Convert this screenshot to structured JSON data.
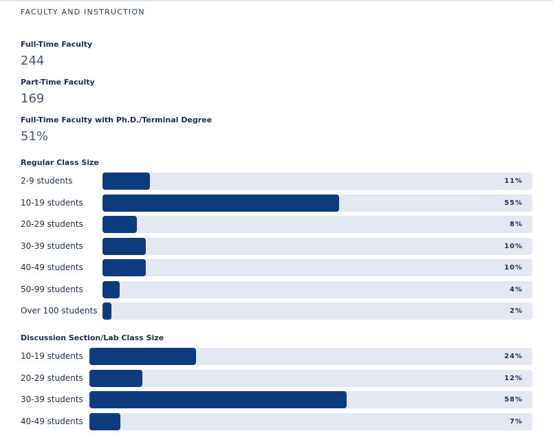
{
  "section": {
    "title": "FACULTY AND INSTRUCTION"
  },
  "stats": [
    {
      "label": "Full-Time Faculty",
      "value": "244"
    },
    {
      "label": "Part-Time Faculty",
      "value": "169"
    },
    {
      "label": "Full-Time Faculty with Ph.D./Terminal Degree",
      "value": "51%"
    }
  ],
  "regular_class_size": {
    "title": "Regular Class Size",
    "rows": [
      {
        "label": "2-9 students",
        "percent": 11,
        "percent_text": "11%"
      },
      {
        "label": "10-19 students",
        "percent": 55,
        "percent_text": "55%"
      },
      {
        "label": "20-29 students",
        "percent": 8,
        "percent_text": "8%"
      },
      {
        "label": "30-39 students",
        "percent": 10,
        "percent_text": "10%"
      },
      {
        "label": "40-49 students",
        "percent": 10,
        "percent_text": "10%"
      },
      {
        "label": "50-99 students",
        "percent": 4,
        "percent_text": "4%"
      },
      {
        "label": "Over 100 students",
        "percent": 2,
        "percent_text": "2%"
      }
    ]
  },
  "lab_class_size": {
    "title": "Discussion Section/Lab Class Size",
    "rows": [
      {
        "label": "10-19 students",
        "percent": 24,
        "percent_text": "24%"
      },
      {
        "label": "20-29 students",
        "percent": 12,
        "percent_text": "12%"
      },
      {
        "label": "30-39 students",
        "percent": 58,
        "percent_text": "58%"
      },
      {
        "label": "40-49 students",
        "percent": 7,
        "percent_text": "7%"
      }
    ]
  },
  "colors": {
    "bar_fill": "#0d3b7e",
    "bar_track": "#e4e9f1"
  }
}
